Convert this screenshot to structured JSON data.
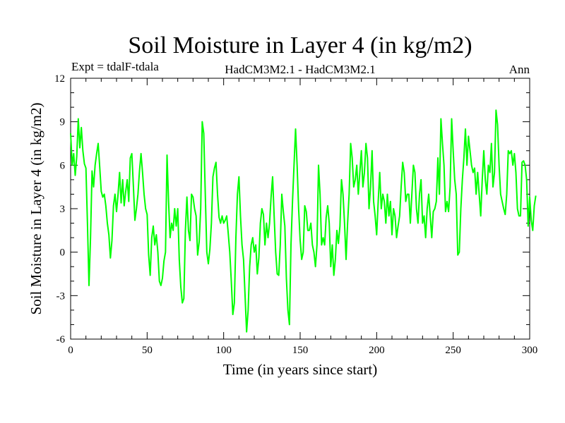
{
  "chart_data": {
    "type": "line",
    "title": "Soil Moisture in Layer 4 (in kg/m2)",
    "subtitle_left": "Expt = tdalF-tdala",
    "subtitle_center": "HadCM3M2.1 - HadCM3M2.1",
    "subtitle_right": "Ann",
    "xlabel": "Time (in years since start)",
    "ylabel": "Soil Moisture in Layer 4 (in kg/m2)",
    "xlim": [
      0,
      300
    ],
    "ylim": [
      -6,
      12
    ],
    "x_ticks": [
      0,
      50,
      100,
      150,
      200,
      250,
      300
    ],
    "x_tick_labels": [
      "0",
      "50",
      "100",
      "150",
      "200",
      "250",
      "300"
    ],
    "y_ticks": [
      -6,
      -3,
      0,
      3,
      6,
      9,
      12
    ],
    "y_tick_labels": [
      "-6",
      "-3",
      "0",
      "3",
      "6",
      "9",
      "12"
    ],
    "grid": false,
    "series": [
      {
        "name": "tdalF-tdala",
        "color": "#00ff00",
        "x_start": 0,
        "x_step": 1,
        "values": [
          8.2,
          6.0,
          6.8,
          5.3,
          6.6,
          9.2,
          7.2,
          8.6,
          7.0,
          6.1,
          5.8,
          2.0,
          -2.3,
          1.0,
          5.6,
          4.5,
          6.0,
          6.8,
          7.5,
          5.9,
          4.2,
          3.8,
          4.0,
          3.2,
          2.0,
          1.2,
          -0.4,
          0.8,
          3.2,
          4.0,
          2.8,
          4.0,
          5.5,
          3.4,
          5.0,
          3.2,
          4.2,
          5.0,
          3.5,
          6.5,
          6.8,
          4.6,
          2.2,
          3.0,
          4.0,
          5.6,
          6.8,
          5.5,
          4.0,
          3.0,
          2.6,
          -0.2,
          -1.6,
          1.0,
          1.8,
          0.5,
          1.2,
          0.0,
          -2.0,
          -2.3,
          -1.8,
          -0.6,
          0.0,
          6.7,
          3.5,
          1.0,
          2.0,
          1.5,
          3.0,
          1.8,
          3.0,
          -0.5,
          -2.4,
          -3.5,
          -3.2,
          1.5,
          3.8,
          1.5,
          0.8,
          4.0,
          3.8,
          3.0,
          2.5,
          -0.2,
          0.7,
          3.0,
          9.0,
          8.2,
          4.0,
          0.0,
          -0.8,
          0.2,
          2.0,
          5.2,
          5.8,
          6.2,
          4.0,
          2.4,
          2.0,
          2.5,
          2.0,
          2.2,
          2.5,
          1.3,
          0.0,
          -2.0,
          -4.3,
          -3.5,
          1.0,
          4.0,
          5.2,
          2.5,
          0.5,
          -0.5,
          -3.0,
          -5.5,
          -4.0,
          -1.0,
          0.5,
          1.0,
          0.0,
          0.5,
          -1.5,
          -0.4,
          2.0,
          3.0,
          2.6,
          0.5,
          2.0,
          1.0,
          2.0,
          3.8,
          5.2,
          2.5,
          0.0,
          -1.5,
          -1.6,
          0.5,
          4.0,
          2.8,
          1.8,
          -1.8,
          -4.0,
          -5.0,
          0.5,
          3.5,
          6.0,
          8.5,
          6.0,
          3.0,
          0.8,
          -0.5,
          0.0,
          3.2,
          2.8,
          1.5,
          1.5,
          2.0,
          0.5,
          0.0,
          -1.0,
          0.5,
          6.0,
          4.0,
          0.5,
          1.0,
          0.5,
          2.4,
          3.2,
          2.0,
          -1.0,
          0.5,
          -1.6,
          -0.5,
          1.5,
          0.6,
          1.8,
          5.0,
          4.0,
          2.0,
          -0.5,
          2.0,
          4.0,
          7.5,
          6.5,
          4.5,
          5.0,
          6.0,
          4.0,
          5.5,
          7.0,
          4.5,
          5.5,
          7.5,
          6.5,
          3.0,
          4.5,
          7.0,
          3.5,
          2.5,
          1.2,
          3.5,
          5.5,
          3.0,
          4.0,
          3.5,
          2.0,
          4.0,
          2.5,
          3.5,
          1.2,
          3.0,
          2.5,
          1.0,
          1.8,
          2.5,
          4.5,
          6.2,
          5.5,
          3.5,
          4.0,
          4.0,
          2.0,
          4.0,
          6.0,
          5.5,
          3.0,
          2.0,
          4.0,
          5.0,
          2.0,
          2.5,
          1.0,
          3.0,
          4.0,
          2.5,
          1.0,
          2.8,
          3.0,
          3.5,
          6.5,
          4.0,
          9.2,
          7.5,
          6.0,
          2.8,
          3.5,
          2.8,
          4.5,
          9.2,
          7.0,
          5.0,
          4.0,
          -0.2,
          0.0,
          3.0,
          5.0,
          6.5,
          8.5,
          6.0,
          8.0,
          7.0,
          6.0,
          5.5,
          5.8,
          4.0,
          5.5,
          4.0,
          2.5,
          5.0,
          7.0,
          5.0,
          4.0,
          6.0,
          5.5,
          7.5,
          4.5,
          5.5,
          9.8,
          8.8,
          6.0,
          4.0,
          3.5,
          3.0,
          2.6,
          4.0,
          7.0,
          6.8,
          7.0,
          6.0,
          6.8,
          5.5,
          3.0,
          2.5,
          2.5,
          6.2,
          6.3,
          6.0,
          5.0,
          1.8,
          3.8,
          2.2,
          1.5,
          3.2,
          3.9
        ]
      }
    ]
  }
}
